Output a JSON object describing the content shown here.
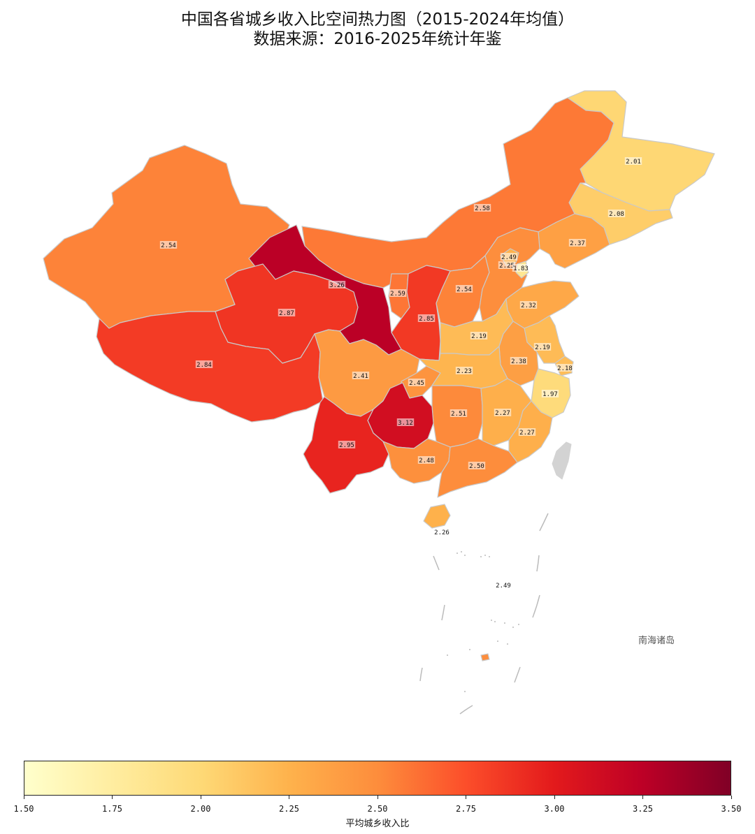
{
  "title": {
    "line1": "中国各省城乡收入比空间热力图（2015-2024年均值）",
    "line2": "数据来源：2016-2025年统计年鉴"
  },
  "colormap": {
    "name": "YlOrRd",
    "stops": [
      "#ffffcc",
      "#ffeda0",
      "#fed976",
      "#feb24c",
      "#fd8d3c",
      "#fc4e2a",
      "#e31a1c",
      "#bd0026",
      "#800026"
    ],
    "min": 1.5,
    "max": 3.5
  },
  "provinces": [
    {
      "name": "heilongjiang",
      "value": 2.01
    },
    {
      "name": "jilin",
      "value": 2.08
    },
    {
      "name": "liaoning",
      "value": 2.37
    },
    {
      "name": "inner-mongolia",
      "value": 2.58
    },
    {
      "name": "xinjiang",
      "value": 2.54
    },
    {
      "name": "gansu",
      "value": 3.26
    },
    {
      "name": "qinghai",
      "value": 2.87
    },
    {
      "name": "tibet",
      "value": 2.84
    },
    {
      "name": "ningxia",
      "value": 2.59
    },
    {
      "name": "shaanxi",
      "value": 2.85
    },
    {
      "name": "shanxi",
      "value": 2.54
    },
    {
      "name": "hebei",
      "value": 2.49
    },
    {
      "name": "beijing",
      "value": 2.25
    },
    {
      "name": "tianjin",
      "value": 1.83
    },
    {
      "name": "shandong",
      "value": 2.32
    },
    {
      "name": "henan",
      "value": 2.19
    },
    {
      "name": "jiangsu",
      "value": 2.19
    },
    {
      "name": "anhui",
      "value": 2.38
    },
    {
      "name": "shanghai",
      "value": 2.18
    },
    {
      "name": "zhejiang",
      "value": 1.97
    },
    {
      "name": "sichuan",
      "value": 2.41
    },
    {
      "name": "chongqing",
      "value": 2.45
    },
    {
      "name": "hubei",
      "value": 2.23
    },
    {
      "name": "hunan",
      "value": 2.51
    },
    {
      "name": "jiangxi",
      "value": 2.27
    },
    {
      "name": "fujian",
      "value": 2.27
    },
    {
      "name": "guizhou",
      "value": 3.12
    },
    {
      "name": "yunnan",
      "value": 2.95
    },
    {
      "name": "guangxi",
      "value": 2.48
    },
    {
      "name": "guangdong",
      "value": 2.5
    },
    {
      "name": "hainan",
      "value": 2.26
    },
    {
      "name": "south-china-sea-islands",
      "value": 2.49
    }
  ],
  "taiwan_color": "#d3d3d3",
  "inset_label": "南海诸岛",
  "colorbar": {
    "ticks": [
      "1.50",
      "1.75",
      "2.00",
      "2.25",
      "2.50",
      "2.75",
      "3.00",
      "3.25",
      "3.50"
    ],
    "label": "平均城乡收入比"
  }
}
